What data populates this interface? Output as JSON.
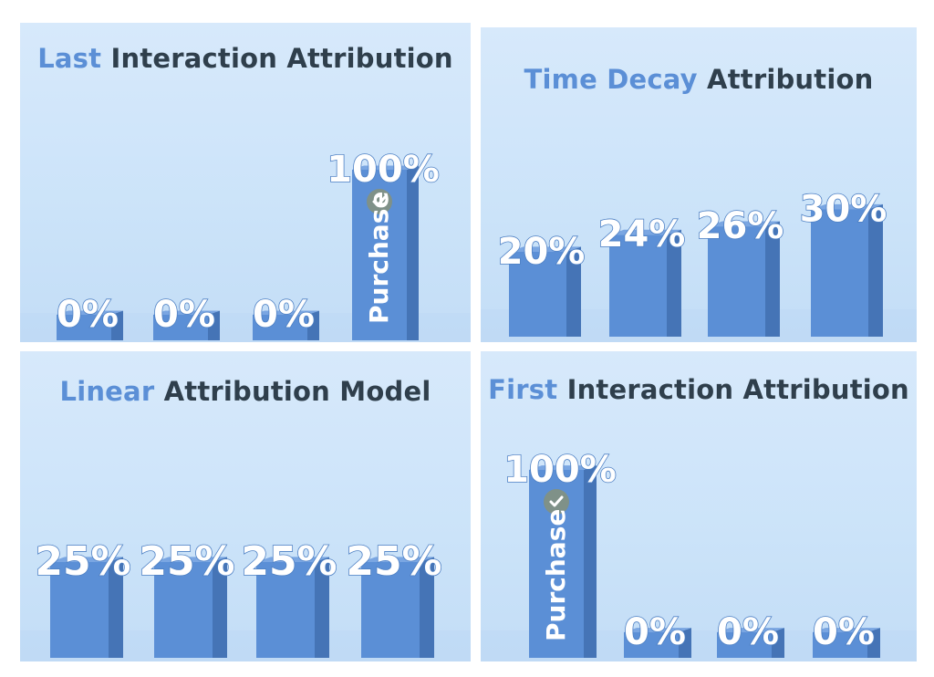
{
  "colors": {
    "bar_front": "#5b8fd6",
    "bar_side": "#4574b6",
    "bar_top": "#7aa6e2",
    "title_highlight": "#5b8fd6",
    "title_dark": "#2f3f4c",
    "check_badge": "#7f9188"
  },
  "chart_data": [
    {
      "type": "bar",
      "title_highlight": "Last",
      "title_rest": " Interaction Attribution",
      "categories": [
        "",
        "",
        "",
        ""
      ],
      "values": [
        0,
        0,
        0,
        100
      ],
      "value_labels": [
        "0%",
        "0%",
        "0%",
        "100%"
      ],
      "ylim": [
        0,
        100
      ],
      "purchase_index": 3,
      "purchase_label": "Purchase",
      "icon": "check-icon"
    },
    {
      "type": "bar",
      "title_highlight": "Time Decay",
      "title_rest": " Attribution",
      "categories": [
        "",
        "",
        "",
        ""
      ],
      "values": [
        20,
        24,
        26,
        30
      ],
      "value_labels": [
        "20%",
        "24%",
        "26%",
        "30%"
      ],
      "ylim": [
        0,
        100
      ]
    },
    {
      "type": "bar",
      "title_highlight": "Linear",
      "title_rest": " Attribution Model",
      "categories": [
        "",
        "",
        "",
        ""
      ],
      "values": [
        25,
        25,
        25,
        25
      ],
      "value_labels": [
        "25%",
        "25%",
        "25%",
        "25%"
      ],
      "ylim": [
        0,
        100
      ]
    },
    {
      "type": "bar",
      "title_highlight": "First",
      "title_rest": " Interaction Attribution",
      "categories": [
        "",
        "",
        "",
        ""
      ],
      "values": [
        100,
        0,
        0,
        0
      ],
      "value_labels": [
        "100%",
        "0%",
        "0%",
        "0%"
      ],
      "ylim": [
        0,
        100
      ],
      "purchase_index": 0,
      "purchase_label": "Purchase",
      "icon": "check-icon"
    }
  ]
}
